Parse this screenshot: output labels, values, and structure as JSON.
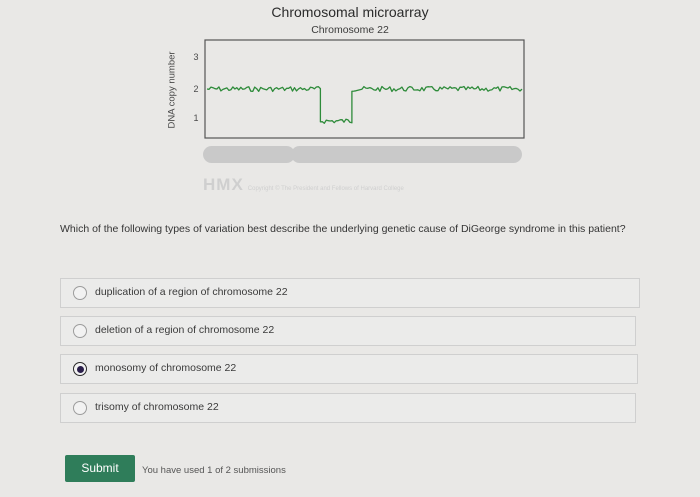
{
  "figure": {
    "title": "Chromosomal microarray",
    "subtitle": "Chromosome 22",
    "ylabel": "DNA copy number",
    "yticks": [
      "3",
      "2",
      "1"
    ],
    "watermark_logo": "HMX",
    "watermark_text": "Copyright © The President and Fellows of Harvard College"
  },
  "chart_data": {
    "type": "line",
    "title": "Chromosomal microarray",
    "subtitle": "Chromosome 22",
    "ylabel": "DNA copy number",
    "xlabel": "",
    "ylim": [
      0.5,
      3.5
    ],
    "yticks": [
      1,
      2,
      3
    ],
    "series": [
      {
        "segments": [
          {
            "x_start": 0.0,
            "x_end": 0.36,
            "copy_number": 2
          },
          {
            "x_start": 0.36,
            "x_end": 0.46,
            "copy_number": 1
          },
          {
            "x_start": 0.46,
            "x_end": 1.0,
            "copy_number": 2
          }
        ]
      }
    ]
  },
  "question": {
    "text": "Which of the following types of variation best describe the underlying genetic cause of DiGeorge syndrome in this patient?",
    "options": [
      {
        "label": "duplication of a region of chromosome 22",
        "selected": false
      },
      {
        "label": "deletion of a region of chromosome 22",
        "selected": false
      },
      {
        "label": "monosomy of chromosome 22",
        "selected": true
      },
      {
        "label": "trisomy of chromosome 22",
        "selected": false
      }
    ]
  },
  "actions": {
    "submit_label": "Submit",
    "submission_info": "You have used 1 of 2 submissions"
  },
  "colors": {
    "trace": "#2e8b3a",
    "submit": "#2f7d5a",
    "chromosome_bar": "#c9c9c9"
  }
}
